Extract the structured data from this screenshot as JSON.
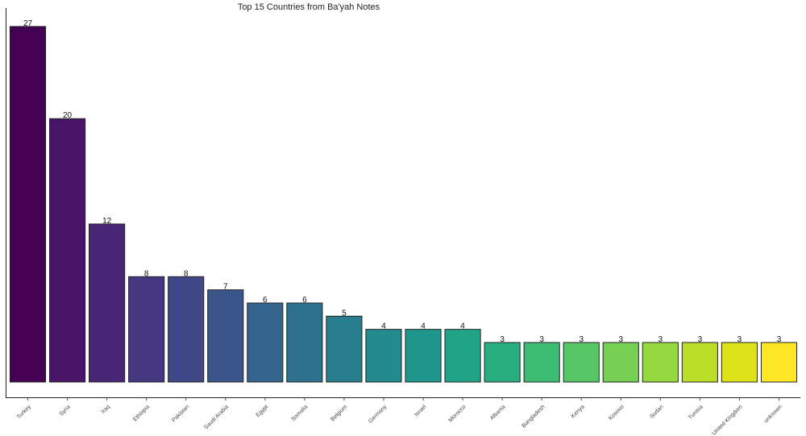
{
  "chart_data": {
    "type": "bar",
    "title": "Top 15 Countries from Ba'yah Notes",
    "xlabel": "",
    "ylabel": "",
    "ylim": [
      0,
      28.4
    ],
    "grid": false,
    "categories": [
      "Turkey",
      "Syria",
      "Iraq",
      "Ethiopia",
      "Pakistan",
      "Saudi Arabia",
      "Egypt",
      "Somalia",
      "Belgium",
      "Germany",
      "Israel",
      "Morocco",
      "Albania",
      "Bangladesh",
      "Kenya",
      "Kosovo",
      "Sudan",
      "Tunisia",
      "United Kingdom",
      "unknown"
    ],
    "values": [
      27,
      20,
      12,
      8,
      8,
      7,
      6,
      6,
      5,
      4,
      4,
      4,
      3,
      3,
      3,
      3,
      3,
      3,
      3,
      3
    ],
    "colors": [
      "#440154",
      "#481467",
      "#482576",
      "#453781",
      "#3f4788",
      "#39558c",
      "#32648e",
      "#2d718e",
      "#287d8e",
      "#238a8d",
      "#1f968b",
      "#20a386",
      "#29af7f",
      "#3dbc74",
      "#56c667",
      "#75d054",
      "#95d840",
      "#bade28",
      "#dde318",
      "#fde725"
    ]
  }
}
